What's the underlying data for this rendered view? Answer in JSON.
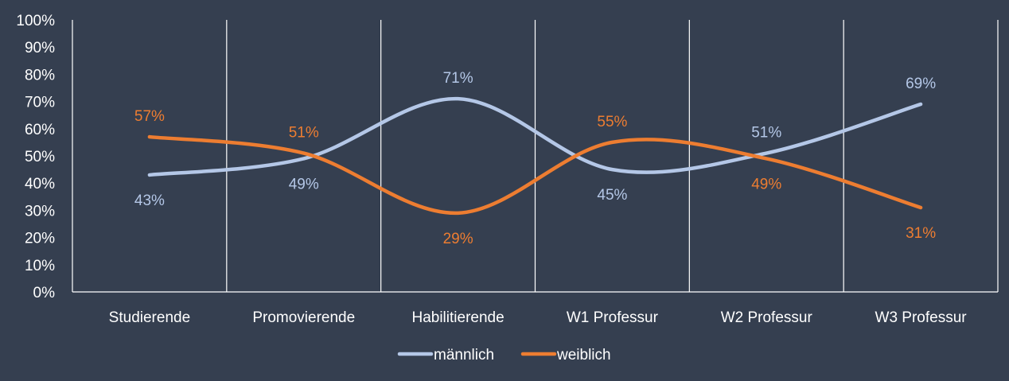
{
  "chart_data": {
    "type": "line",
    "categories": [
      "Studierende",
      "Promovierende",
      "Habilitierende",
      "W1 Professur",
      "W2 Professur",
      "W3 Professur"
    ],
    "series": [
      {
        "name": "männlich",
        "values": [
          43,
          49,
          71,
          45,
          51,
          69
        ],
        "color": "#b4c7e7",
        "labels": [
          "43%",
          "49%",
          "71%",
          "45%",
          "51%",
          "69%"
        ]
      },
      {
        "name": "weiblich",
        "values": [
          57,
          51,
          29,
          55,
          49,
          31
        ],
        "color": "#ed7d31",
        "labels": [
          "57%",
          "51%",
          "29%",
          "55%",
          "49%",
          "31%"
        ]
      }
    ],
    "ylim": [
      0,
      100
    ],
    "yticks": [
      "0%",
      "10%",
      "20%",
      "30%",
      "40%",
      "50%",
      "60%",
      "70%",
      "80%",
      "90%",
      "100%"
    ],
    "grid": "vertical category separators",
    "legend": "bottom-center",
    "smooth": true,
    "background": "#353f50"
  }
}
